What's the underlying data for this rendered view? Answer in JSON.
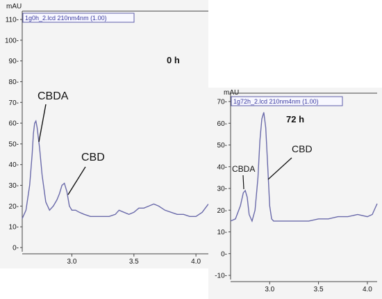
{
  "chart_data": [
    {
      "type": "line",
      "unit": "mAU",
      "trace_label": "1g0h_2.lcd 210nm4nm (1.00)",
      "time_label": "0 h",
      "ylim": [
        0,
        110
      ],
      "yticks": [
        "0-",
        "10-",
        "20-",
        "30-",
        "40-",
        "50-",
        "60-",
        "70-",
        "80-",
        "90-",
        "100-",
        "110-"
      ],
      "xlim": [
        2.6,
        4.1
      ],
      "xticks": [
        {
          "value": 3.0,
          "label": "3.0"
        },
        {
          "value": 3.5,
          "label": "3.5"
        },
        {
          "value": 4.0,
          "label": "4.0"
        }
      ],
      "series": [
        {
          "x": [
            2.6,
            2.63,
            2.66,
            2.68,
            2.69,
            2.7,
            2.71,
            2.72,
            2.74,
            2.76,
            2.79,
            2.82,
            2.85,
            2.88,
            2.9,
            2.92,
            2.94,
            2.96,
            2.98,
            3.0,
            3.03,
            3.06,
            3.1,
            3.15,
            3.2,
            3.25,
            3.3,
            3.35,
            3.38,
            3.42,
            3.46,
            3.5,
            3.54,
            3.58,
            3.62,
            3.66,
            3.7,
            3.75,
            3.8,
            3.85,
            3.9,
            3.95,
            4.0,
            4.05,
            4.1
          ],
          "y": [
            14,
            18,
            30,
            45,
            55,
            60,
            61,
            58,
            48,
            35,
            22,
            18,
            20,
            23,
            26,
            30,
            31,
            27,
            20,
            18,
            18,
            17,
            16,
            15,
            15,
            15,
            15,
            16,
            18,
            17,
            16,
            17,
            19,
            19,
            20,
            21,
            20,
            18,
            17,
            16,
            16,
            15,
            15,
            17,
            21
          ]
        }
      ],
      "annotations": [
        {
          "text": "CBDA",
          "points_to": {
            "x": 2.7,
            "y": 50
          }
        },
        {
          "text": "CBD",
          "points_to": {
            "x": 2.96,
            "y": 25
          }
        }
      ]
    },
    {
      "type": "line",
      "unit": "mAU",
      "trace_label": "1g72h_2.lcd 210nm4nm (1.00)",
      "time_label": "72 h",
      "ylim": [
        -10,
        70
      ],
      "yticks": [
        "-10-",
        "0-",
        "10-",
        "20-",
        "30-",
        "40-",
        "50-",
        "60-",
        "70-"
      ],
      "xlim": [
        2.6,
        4.1
      ],
      "xticks": [
        {
          "value": 3.0,
          "label": "3.0"
        },
        {
          "value": 3.5,
          "label": "3.5"
        },
        {
          "value": 4.0,
          "label": "4.0"
        }
      ],
      "series": [
        {
          "x": [
            2.6,
            2.65,
            2.7,
            2.73,
            2.75,
            2.77,
            2.79,
            2.82,
            2.85,
            2.88,
            2.9,
            2.92,
            2.94,
            2.96,
            2.98,
            3.0,
            3.02,
            3.04,
            3.06,
            3.1,
            3.2,
            3.3,
            3.4,
            3.5,
            3.6,
            3.7,
            3.8,
            3.9,
            4.0,
            4.05,
            4.1
          ],
          "y": [
            15,
            16,
            22,
            28,
            29,
            26,
            18,
            15,
            20,
            35,
            52,
            62,
            65,
            58,
            40,
            22,
            16,
            15,
            15,
            15,
            15,
            15,
            15,
            16,
            16,
            17,
            17,
            18,
            17,
            18,
            23
          ]
        }
      ],
      "annotations": [
        {
          "text": "CBDA",
          "points_to": {
            "x": 2.75,
            "y": 23
          }
        },
        {
          "text": "CBD",
          "points_to": {
            "x": 2.96,
            "y": 31
          }
        }
      ]
    }
  ]
}
